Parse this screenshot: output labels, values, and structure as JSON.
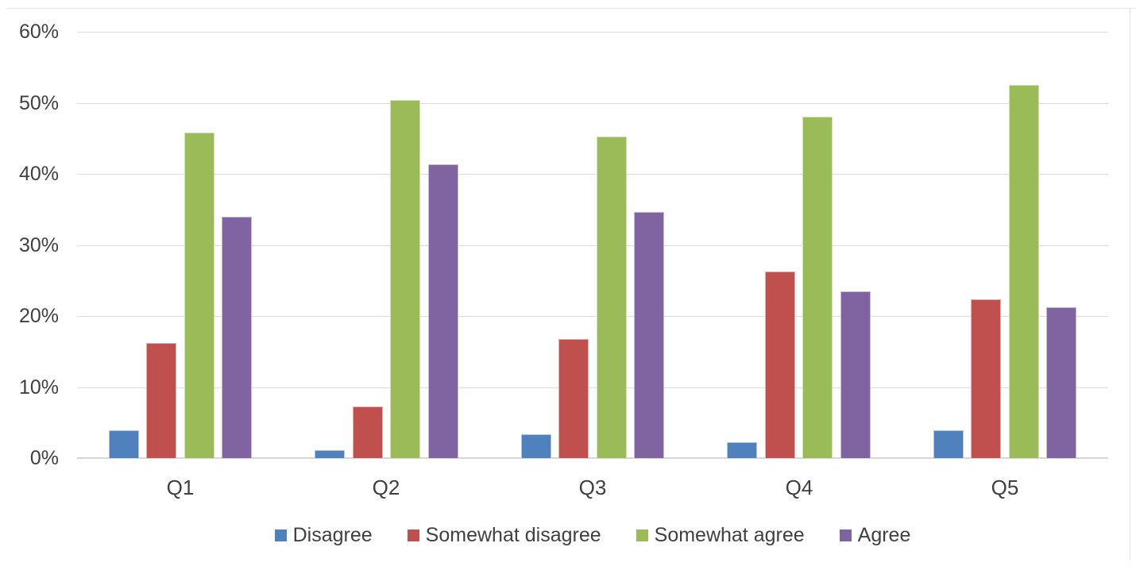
{
  "chart_data": {
    "type": "bar",
    "title": "",
    "xlabel": "",
    "ylabel": "",
    "categories": [
      "Q1",
      "Q2",
      "Q3",
      "Q4",
      "Q5"
    ],
    "series": [
      {
        "name": "Disagree",
        "color": "#4F81BD",
        "values": [
          3.9,
          1.1,
          3.4,
          2.2,
          3.9
        ]
      },
      {
        "name": "Somewhat disagree",
        "color": "#C0504D",
        "values": [
          16.2,
          7.3,
          16.8,
          26.3,
          22.3
        ]
      },
      {
        "name": "Somewhat agree",
        "color": "#9BBB59",
        "values": [
          45.8,
          50.4,
          45.3,
          48.0,
          52.5
        ]
      },
      {
        "name": "Agree",
        "color": "#8064A2",
        "values": [
          34.0,
          41.3,
          34.6,
          23.5,
          21.2
        ]
      }
    ],
    "ylim": [
      0,
      60
    ],
    "y_ticks": [
      {
        "value": 0,
        "label": "0%"
      },
      {
        "value": 10,
        "label": "10%"
      },
      {
        "value": 20,
        "label": "20%"
      },
      {
        "value": 30,
        "label": "30%"
      },
      {
        "value": 40,
        "label": "40%"
      },
      {
        "value": 50,
        "label": "50%"
      },
      {
        "value": 60,
        "label": "60%"
      }
    ],
    "grid": true,
    "legend_position": "bottom",
    "colors": {
      "grid": "#dbdbdb",
      "axis_text": "#404040",
      "background": "#ffffff",
      "panel_border": "#e3e3e3"
    }
  }
}
